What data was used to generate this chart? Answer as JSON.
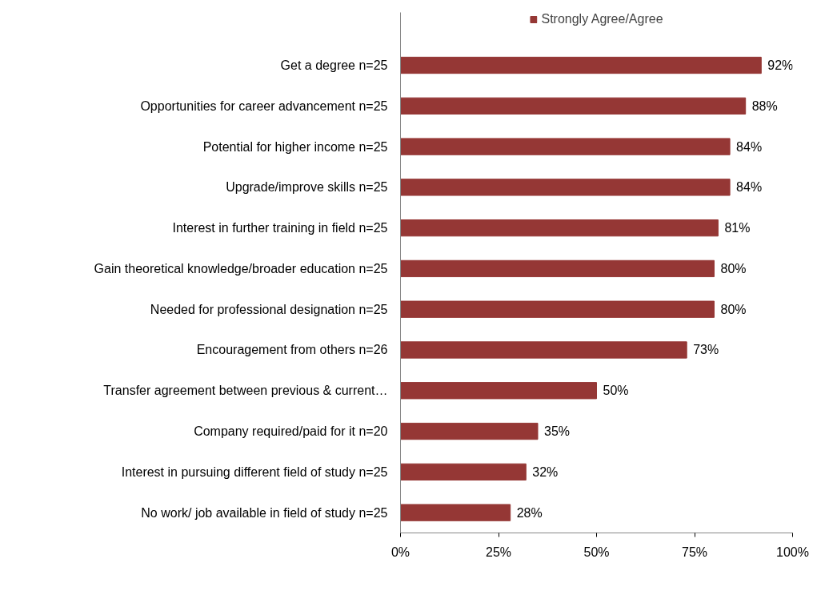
{
  "chart_data": {
    "type": "bar",
    "orientation": "horizontal",
    "categories": [
      "Get a degree n=25",
      "Opportunities for career advancement n=25",
      "Potential for higher income n=25",
      "Upgrade/improve skills n=25",
      "Interest in further training in field n=25",
      "Gain theoretical knowledge/broader education n=25",
      "Needed for professional designation n=25",
      "Encouragement from others n=26",
      "Transfer agreement between previous & current…",
      "Company required/paid for it n=20",
      "Interest in pursuing different field of study n=25",
      "No work/ job available in field of study n=25"
    ],
    "series": [
      {
        "name": "Strongly Agree/Agree",
        "color": "#953735",
        "values": [
          92,
          88,
          84,
          84,
          81,
          80,
          80,
          73,
          50,
          35,
          32,
          28
        ],
        "value_labels": [
          "92%",
          "88%",
          "84%",
          "84%",
          "81%",
          "80%",
          "80%",
          "73%",
          "50%",
          "35%",
          "32%",
          "28%"
        ]
      }
    ],
    "xlim": [
      0,
      100
    ],
    "xticks": [
      {
        "value": 0,
        "label": "0%"
      },
      {
        "value": 25,
        "label": "25%"
      },
      {
        "value": 50,
        "label": "50%"
      },
      {
        "value": 75,
        "label": "75%"
      },
      {
        "value": 100,
        "label": "100%"
      }
    ],
    "grid": false,
    "legend": "top"
  }
}
